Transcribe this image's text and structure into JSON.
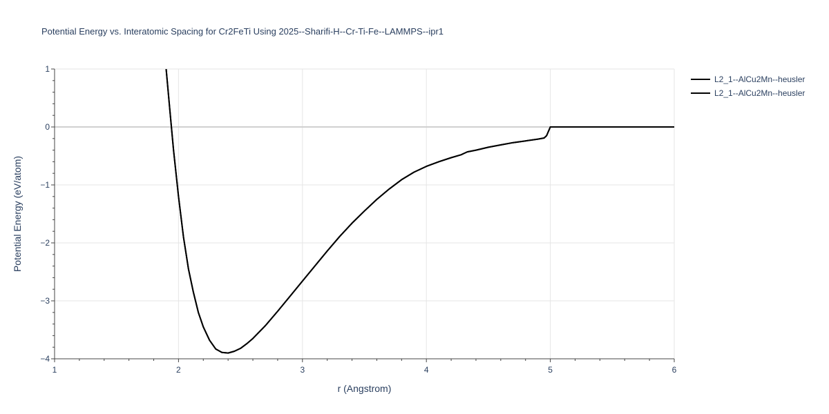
{
  "chart_data": {
    "type": "line",
    "title": "Potential Energy vs. Interatomic Spacing for Cr2FeTi Using 2025--Sharifi-H--Cr-Ti-Fe--LAMMPS--ipr1",
    "xlabel": "r (Angstrom)",
    "ylabel": "Potential Energy (eV/atom)",
    "xlim": [
      1,
      6
    ],
    "ylim": [
      -4,
      1
    ],
    "x_ticks": [
      "1",
      "2",
      "3",
      "4",
      "5",
      "6"
    ],
    "y_ticks": [
      "−4",
      "−3",
      "−2",
      "−1",
      "0",
      "1"
    ],
    "x_tick_values": [
      1,
      2,
      3,
      4,
      5,
      6
    ],
    "y_tick_values": [
      -4,
      -3,
      -2,
      -1,
      0,
      1
    ],
    "grid": true,
    "legend_position": "top-right",
    "series": [
      {
        "name": "L2_1--AlCu2Mn--heusler",
        "color": "#000000",
        "x": [
          1.9,
          1.93,
          1.96,
          2.0,
          2.04,
          2.08,
          2.12,
          2.16,
          2.2,
          2.25,
          2.3,
          2.35,
          2.4,
          2.45,
          2.5,
          2.55,
          2.6,
          2.7,
          2.8,
          2.9,
          3.0,
          3.1,
          3.2,
          3.3,
          3.4,
          3.5,
          3.6,
          3.7,
          3.8,
          3.9,
          4.0,
          4.1,
          4.2,
          4.28,
          4.3,
          4.33,
          4.4,
          4.5,
          4.6,
          4.7,
          4.8,
          4.9,
          4.95,
          4.97,
          5.0,
          5.1,
          5.5,
          6.0
        ],
        "y": [
          1.0,
          0.3,
          -0.4,
          -1.2,
          -1.9,
          -2.45,
          -2.85,
          -3.2,
          -3.45,
          -3.68,
          -3.83,
          -3.89,
          -3.9,
          -3.87,
          -3.82,
          -3.74,
          -3.65,
          -3.43,
          -3.18,
          -2.92,
          -2.66,
          -2.4,
          -2.14,
          -1.89,
          -1.66,
          -1.45,
          -1.25,
          -1.07,
          -0.91,
          -0.78,
          -0.68,
          -0.6,
          -0.53,
          -0.48,
          -0.46,
          -0.43,
          -0.4,
          -0.35,
          -0.31,
          -0.27,
          -0.24,
          -0.21,
          -0.19,
          -0.15,
          0.0,
          0.0,
          0.0,
          0.0
        ]
      },
      {
        "name": "L2_1--AlCu2Mn--heusler",
        "color": "#000000",
        "x": [
          1.9,
          1.93,
          1.96,
          2.0,
          2.04,
          2.08,
          2.12,
          2.16,
          2.2,
          2.25,
          2.3,
          2.35,
          2.4,
          2.45,
          2.5,
          2.55,
          2.6,
          2.7,
          2.8,
          2.9,
          3.0,
          3.1,
          3.2,
          3.3,
          3.4,
          3.5,
          3.6,
          3.7,
          3.8,
          3.9,
          4.0,
          4.1,
          4.2,
          4.28,
          4.3,
          4.33,
          4.4,
          4.5,
          4.6,
          4.7,
          4.8,
          4.9,
          4.95,
          4.97,
          5.0,
          5.1,
          5.5,
          6.0
        ],
        "y": [
          1.0,
          0.3,
          -0.4,
          -1.2,
          -1.9,
          -2.45,
          -2.85,
          -3.2,
          -3.45,
          -3.68,
          -3.83,
          -3.89,
          -3.9,
          -3.87,
          -3.82,
          -3.74,
          -3.65,
          -3.43,
          -3.18,
          -2.92,
          -2.66,
          -2.4,
          -2.14,
          -1.89,
          -1.66,
          -1.45,
          -1.25,
          -1.07,
          -0.91,
          -0.78,
          -0.68,
          -0.6,
          -0.53,
          -0.48,
          -0.46,
          -0.43,
          -0.4,
          -0.35,
          -0.31,
          -0.27,
          -0.24,
          -0.21,
          -0.19,
          -0.15,
          0.0,
          0.0,
          0.0,
          0.0
        ]
      }
    ]
  }
}
